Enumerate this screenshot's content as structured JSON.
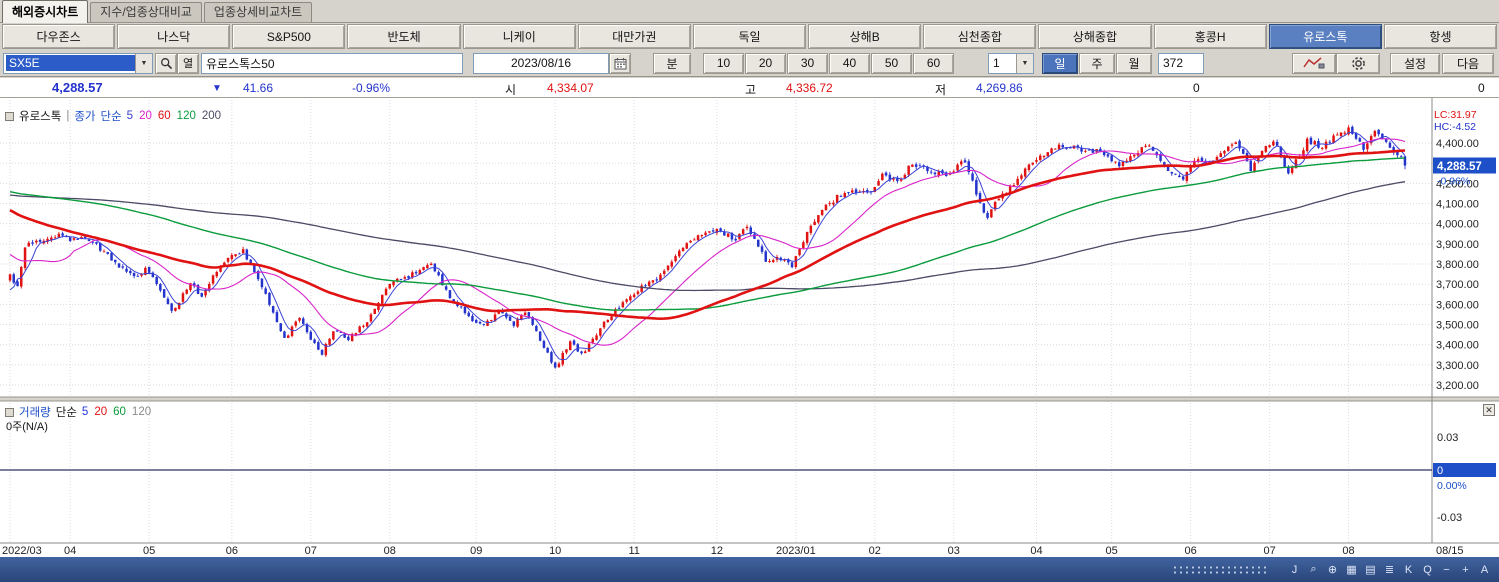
{
  "glyphs": {
    "dropdown": "▼",
    "close": "✕"
  },
  "tabs": [
    {
      "label": "해외증시차트",
      "active": true
    },
    {
      "label": "지수/업종상대비교",
      "active": false
    },
    {
      "label": "업종상세비교차트",
      "active": false
    }
  ],
  "markets": [
    {
      "label": "다우존스",
      "active": false
    },
    {
      "label": "나스닥",
      "active": false
    },
    {
      "label": "S&P500",
      "active": false
    },
    {
      "label": "반도체",
      "active": false
    },
    {
      "label": "니케이",
      "active": false
    },
    {
      "label": "대만가권",
      "active": false
    },
    {
      "label": "독일",
      "active": false
    },
    {
      "label": "상해B",
      "active": false
    },
    {
      "label": "심천종합",
      "active": false
    },
    {
      "label": "상해종합",
      "active": false
    },
    {
      "label": "홍콩H",
      "active": false
    },
    {
      "label": "유로스톡",
      "active": true
    },
    {
      "label": "항셍",
      "active": false
    }
  ],
  "toolbar": {
    "symbol_code": "SX5E",
    "list_button_label": "열",
    "symbol_name": "유로스톡스50",
    "date": "2023/08/16",
    "minute_label": "분",
    "minute_presets": [
      "10",
      "20",
      "30",
      "40",
      "50",
      "60"
    ],
    "interval_value": "1",
    "period_buttons": [
      {
        "label": "일",
        "active": true
      },
      {
        "label": "주",
        "active": false
      },
      {
        "label": "월",
        "active": false
      }
    ],
    "bar_count": "372",
    "settings_label": "설정",
    "next_label": "다음"
  },
  "info": {
    "price": "4,288.57",
    "direction": "▼",
    "change": "41.66",
    "change_pct": "-0.96%",
    "open_label": "시",
    "open": "4,334.07",
    "high_label": "고",
    "high": "4,336.72",
    "low_label": "저",
    "low": "4,269.86",
    "extra_zero_1": "0",
    "extra_zero_2": "0"
  },
  "main_pane": {
    "title": "유로스톡",
    "separator": "|",
    "overlay_price_label": "종가",
    "overlay_ma_label": "단순",
    "ma": [
      {
        "period": "5",
        "color": "#3a43d6",
        "width": 1
      },
      {
        "period": "20",
        "color": "#d923c9",
        "width": 1.1
      },
      {
        "period": "60",
        "color": "#e01212",
        "width": 2.6
      },
      {
        "period": "120",
        "color": "#0a9b3c",
        "width": 1.4
      },
      {
        "period": "200",
        "color": "#4b4b66",
        "width": 1.3
      }
    ],
    "lc_label": "LC:31.97",
    "hc_label": "HC:-4.52",
    "last_price": "4,288.57",
    "last_price_pct": "-0.96%"
  },
  "volume_pane": {
    "title": "거래량",
    "ma_label": "단순",
    "ma": [
      {
        "period": "5",
        "color": "#2436d9"
      },
      {
        "period": "20",
        "color": "#e01212"
      },
      {
        "period": "60",
        "color": "#0a9b3c"
      },
      {
        "period": "120",
        "color": "#8a8a8a"
      }
    ],
    "na_label": "0주(N/A)",
    "upper_tick": "0.03",
    "lower_tick": "-0.03",
    "zero_label": "0",
    "zero_pct": "0.00%"
  },
  "x_axis": {
    "months": [
      {
        "label": "2022/03",
        "bar": 0
      },
      {
        "label": "04",
        "bar": 16
      },
      {
        "label": "05",
        "bar": 37
      },
      {
        "label": "06",
        "bar": 59
      },
      {
        "label": "07",
        "bar": 80
      },
      {
        "label": "08",
        "bar": 101
      },
      {
        "label": "09",
        "bar": 124
      },
      {
        "label": "10",
        "bar": 145
      },
      {
        "label": "11",
        "bar": 166
      },
      {
        "label": "12",
        "bar": 188
      },
      {
        "label": "2023/01",
        "bar": 209
      },
      {
        "label": "02",
        "bar": 230
      },
      {
        "label": "03",
        "bar": 251
      },
      {
        "label": "04",
        "bar": 273
      },
      {
        "label": "05",
        "bar": 293
      },
      {
        "label": "06",
        "bar": 314
      },
      {
        "label": "07",
        "bar": 335
      },
      {
        "label": "08",
        "bar": 356
      }
    ],
    "end_label": "08/15"
  },
  "status_bar": {
    "icons": [
      "J",
      "⌕",
      "⊕",
      "▦",
      "▤",
      "≣",
      "K",
      "Q",
      "−",
      "+",
      "A"
    ]
  },
  "chart_data": {
    "type": "candlestick",
    "symbol": "SX5E",
    "name": "유로스톡스50",
    "interval": "일",
    "bars_visible": 372,
    "x_start": "2022/03",
    "x_end": "2023/08/16",
    "ylim": [
      3150,
      4620
    ],
    "grid_step": 100,
    "price_ticks": [
      4400,
      4300,
      4200,
      4100,
      4000,
      3900,
      3800,
      3700,
      3600,
      3500,
      3400,
      3300,
      3200
    ],
    "ma_periods": [
      5,
      20,
      60,
      120,
      200
    ],
    "last_bar": {
      "open": 4334.07,
      "high": 4336.72,
      "low": 4269.86,
      "close": 4288.57,
      "change": -41.66,
      "change_pct": -0.96,
      "prev_close": 4330.23
    },
    "volume": {
      "value": 0,
      "note": "N/A"
    },
    "prehistory_anchors": [
      [
        -200,
        4075
      ],
      [
        -160,
        4140
      ],
      [
        -130,
        4110
      ],
      [
        -100,
        4230
      ],
      [
        -75,
        4300
      ],
      [
        -55,
        4306
      ],
      [
        -40,
        4200
      ],
      [
        -28,
        4085
      ],
      [
        -20,
        3950
      ],
      [
        -14,
        3880
      ],
      [
        -9,
        3970
      ],
      [
        -6,
        3850
      ],
      [
        -4,
        3640
      ],
      [
        -3,
        3505
      ],
      [
        -2,
        3755
      ],
      [
        -1,
        3730
      ]
    ],
    "anchors": [
      [
        0,
        3741
      ],
      [
        2,
        3690
      ],
      [
        4,
        3890
      ],
      [
        13,
        3945
      ],
      [
        16,
        3918
      ],
      [
        20,
        3940
      ],
      [
        25,
        3860
      ],
      [
        29,
        3790
      ],
      [
        34,
        3730
      ],
      [
        36,
        3780
      ],
      [
        39,
        3700
      ],
      [
        43,
        3560
      ],
      [
        48,
        3705
      ],
      [
        51,
        3640
      ],
      [
        56,
        3800
      ],
      [
        62,
        3870
      ],
      [
        68,
        3650
      ],
      [
        73,
        3427
      ],
      [
        77,
        3533
      ],
      [
        79,
        3455
      ],
      [
        83,
        3360
      ],
      [
        86,
        3470
      ],
      [
        90,
        3430
      ],
      [
        95,
        3520
      ],
      [
        101,
        3708
      ],
      [
        105,
        3730
      ],
      [
        112,
        3795
      ],
      [
        117,
        3640
      ],
      [
        123,
        3517
      ],
      [
        126,
        3490
      ],
      [
        130,
        3570
      ],
      [
        134,
        3500
      ],
      [
        137,
        3560
      ],
      [
        141,
        3430
      ],
      [
        145,
        3279
      ],
      [
        147,
        3350
      ],
      [
        149,
        3420
      ],
      [
        152,
        3350
      ],
      [
        156,
        3450
      ],
      [
        159,
        3530
      ],
      [
        164,
        3620
      ],
      [
        168,
        3688
      ],
      [
        173,
        3740
      ],
      [
        178,
        3870
      ],
      [
        183,
        3940
      ],
      [
        187,
        3965
      ],
      [
        189,
        3964
      ],
      [
        193,
        3919
      ],
      [
        196,
        3995
      ],
      [
        201,
        3820
      ],
      [
        205,
        3830
      ],
      [
        208,
        3794
      ],
      [
        210,
        3870
      ],
      [
        213,
        3990
      ],
      [
        216,
        4068
      ],
      [
        220,
        4130
      ],
      [
        224,
        4153
      ],
      [
        229,
        4163
      ],
      [
        232,
        4240
      ],
      [
        236,
        4210
      ],
      [
        240,
        4297
      ],
      [
        244,
        4265
      ],
      [
        250,
        4238
      ],
      [
        252,
        4295
      ],
      [
        254,
        4310
      ],
      [
        258,
        4096
      ],
      [
        260,
        4034
      ],
      [
        263,
        4131
      ],
      [
        267,
        4190
      ],
      [
        272,
        4315
      ],
      [
        275,
        4340
      ],
      [
        279,
        4391
      ],
      [
        284,
        4370
      ],
      [
        290,
        4359
      ],
      [
        295,
        4288
      ],
      [
        299,
        4340
      ],
      [
        303,
        4395
      ],
      [
        308,
        4263
      ],
      [
        312,
        4218
      ],
      [
        315,
        4323
      ],
      [
        318,
        4290
      ],
      [
        323,
        4370
      ],
      [
        326,
        4395
      ],
      [
        330,
        4272
      ],
      [
        333,
        4350
      ],
      [
        335,
        4399
      ],
      [
        337,
        4390
      ],
      [
        340,
        4237
      ],
      [
        345,
        4412
      ],
      [
        349,
        4380
      ],
      [
        352,
        4430
      ],
      [
        354,
        4450
      ],
      [
        356,
        4471
      ],
      [
        358,
        4420
      ],
      [
        360,
        4370
      ],
      [
        362,
        4443
      ],
      [
        364,
        4450
      ],
      [
        366,
        4400
      ],
      [
        368,
        4340
      ],
      [
        370,
        4330.23
      ],
      [
        371,
        4288.57
      ]
    ]
  }
}
